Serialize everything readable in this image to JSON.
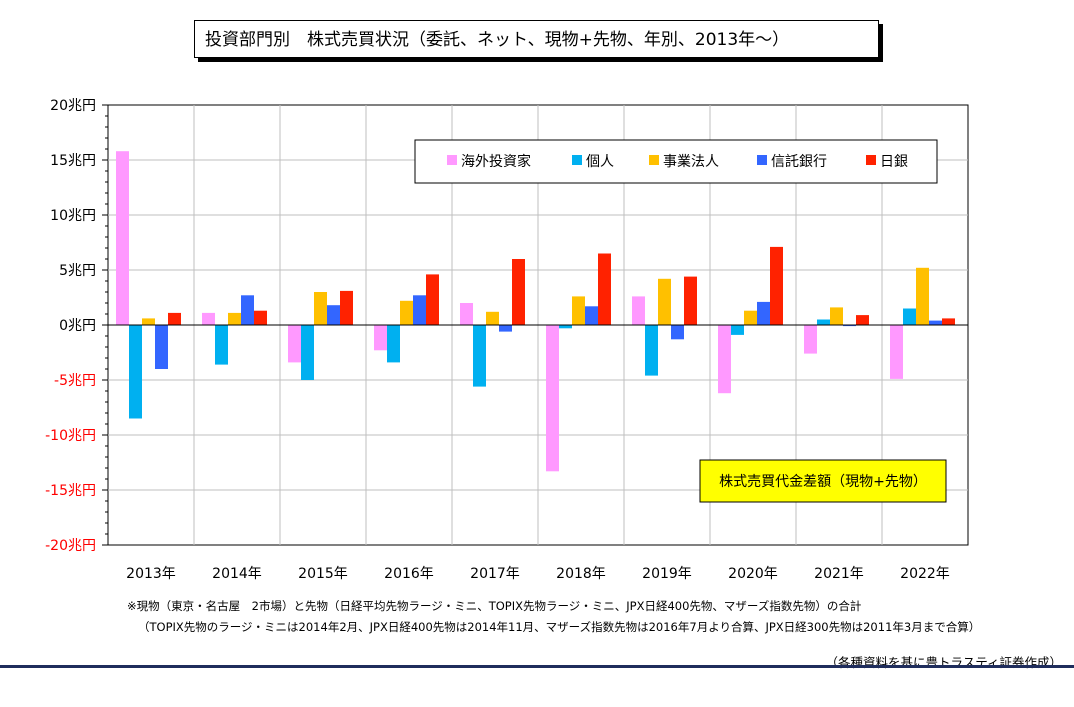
{
  "title": "投資部門別　株式売買状況（委託、ネット、現物+先物、年別、2013年～）",
  "notes": {
    "line1": "※現物（東京・名古屋　2市場）と先物（日経平均先物ラージ・ミニ、TOPIX先物ラージ・ミニ、JPX日経400先物、マザーズ指数先物）の合計",
    "line2": "（TOPIX先物のラージ・ミニは2014年2月、JPX日経400先物は2014年11月、マザーズ指数先物は2016年7月より合算、JPX日経300先物は2011年3月まで合算）"
  },
  "source": "（各種資料を基に豊トラスティ証券作成）",
  "colors": {
    "positive_tick": "#000000",
    "negative_tick": "#ff0000",
    "annotation_bg": "#ffff00"
  },
  "chart_data": {
    "type": "bar",
    "categories": [
      "2013年",
      "2014年",
      "2015年",
      "2016年",
      "2017年",
      "2018年",
      "2019年",
      "2020年",
      "2021年",
      "2022年"
    ],
    "y_ticks": [
      {
        "value": 20,
        "label": "20兆円"
      },
      {
        "value": 15,
        "label": "15兆円"
      },
      {
        "value": 10,
        "label": "10兆円"
      },
      {
        "value": 5,
        "label": "5兆円"
      },
      {
        "value": 0,
        "label": "0兆円"
      },
      {
        "value": -5,
        "label": "-5兆円"
      },
      {
        "value": -10,
        "label": "-10兆円"
      },
      {
        "value": -15,
        "label": "-15兆円"
      },
      {
        "value": -20,
        "label": "-20兆円"
      }
    ],
    "ylim": [
      -20,
      20
    ],
    "grid": true,
    "legend_position": "top-right",
    "annotation": "株式売買代金差額（現物+先物）",
    "series": [
      {
        "name": "海外投資家",
        "color": "#ff99ff",
        "values": [
          15.8,
          1.1,
          -3.4,
          -2.3,
          2.0,
          -13.3,
          2.6,
          -6.2,
          -2.6,
          -4.9
        ]
      },
      {
        "name": "個人",
        "color": "#00b0f0",
        "values": [
          -8.5,
          -3.6,
          -5.0,
          -3.4,
          -5.6,
          -0.3,
          -4.6,
          -0.9,
          0.5,
          1.5
        ]
      },
      {
        "name": "事業法人",
        "color": "#ffc000",
        "values": [
          0.6,
          1.1,
          3.0,
          2.2,
          1.2,
          2.6,
          4.2,
          1.3,
          1.6,
          5.2
        ]
      },
      {
        "name": "信託銀行",
        "color": "#3366ff",
        "values": [
          -4.0,
          2.7,
          1.8,
          2.7,
          -0.6,
          1.7,
          -1.3,
          2.1,
          -0.1,
          0.4
        ]
      },
      {
        "name": "日銀",
        "color": "#ff2200",
        "values": [
          1.1,
          1.3,
          3.1,
          4.6,
          6.0,
          6.5,
          4.4,
          7.1,
          0.9,
          0.6
        ]
      }
    ]
  }
}
